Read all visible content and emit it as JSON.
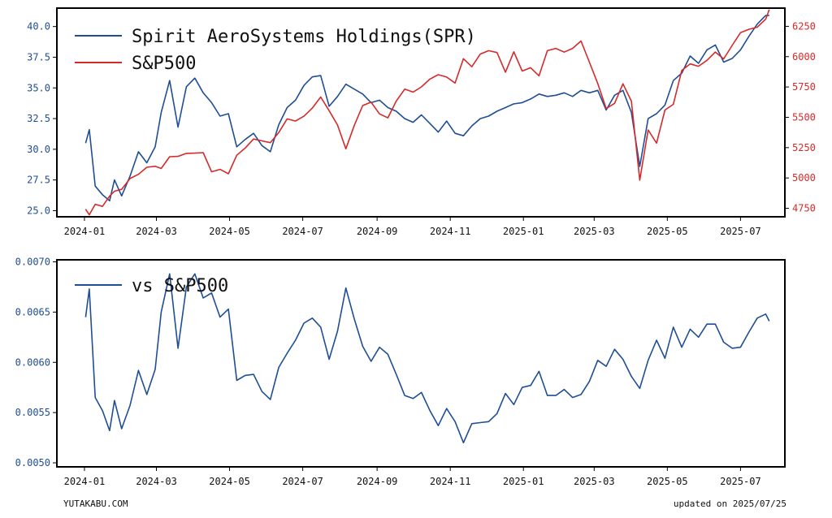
{
  "footer": {
    "site": "YUTAKABU.COM",
    "updated": "updated on 2025/07/25"
  },
  "colors": {
    "spr": "#1f4e96",
    "sp500": "#d62a2a",
    "left_axis": "#1f4e96",
    "right_axis": "#d62a2a"
  },
  "chart_data": [
    {
      "type": "line",
      "x_ticks": [
        "2024-01",
        "2024-03",
        "2024-05",
        "2024-07",
        "2024-09",
        "2024-11",
        "2025-01",
        "2025-03",
        "2025-05",
        "2025-07"
      ],
      "y_ticks_left": [
        "25.0",
        "27.5",
        "30.0",
        "32.5",
        "35.0",
        "37.5",
        "40.0"
      ],
      "y_ticks_right": [
        "4750",
        "5000",
        "5250",
        "5500",
        "5750",
        "6000",
        "6250"
      ],
      "ylim_left": [
        24.5,
        41.5
      ],
      "ylim_right": [
        4680,
        6400
      ],
      "legend": "top-left",
      "grid": false,
      "series": [
        {
          "name": "Spirit AeroSystems Holdings(SPR)",
          "axis": "left",
          "x": [
            "2024-01-02",
            "2024-01-05",
            "2024-01-10",
            "2024-01-16",
            "2024-01-22",
            "2024-01-26",
            "2024-02-01",
            "2024-02-08",
            "2024-02-15",
            "2024-02-22",
            "2024-02-29",
            "2024-03-05",
            "2024-03-12",
            "2024-03-19",
            "2024-03-26",
            "2024-04-02",
            "2024-04-09",
            "2024-04-16",
            "2024-04-23",
            "2024-04-30",
            "2024-05-07",
            "2024-05-14",
            "2024-05-21",
            "2024-05-28",
            "2024-06-04",
            "2024-06-11",
            "2024-06-18",
            "2024-06-25",
            "2024-07-02",
            "2024-07-09",
            "2024-07-16",
            "2024-07-23",
            "2024-07-30",
            "2024-08-06",
            "2024-08-13",
            "2024-08-20",
            "2024-08-27",
            "2024-09-03",
            "2024-09-10",
            "2024-09-17",
            "2024-09-24",
            "2024-10-01",
            "2024-10-08",
            "2024-10-15",
            "2024-10-22",
            "2024-10-29",
            "2024-11-05",
            "2024-11-12",
            "2024-11-19",
            "2024-11-26",
            "2024-12-03",
            "2024-12-10",
            "2024-12-17",
            "2024-12-24",
            "2024-12-31",
            "2025-01-07",
            "2025-01-14",
            "2025-01-21",
            "2025-01-28",
            "2025-02-04",
            "2025-02-11",
            "2025-02-18",
            "2025-02-25",
            "2025-03-04",
            "2025-03-11",
            "2025-03-18",
            "2025-03-25",
            "2025-04-01",
            "2025-04-08",
            "2025-04-15",
            "2025-04-22",
            "2025-04-29",
            "2025-05-06",
            "2025-05-13",
            "2025-05-20",
            "2025-05-27",
            "2025-06-03",
            "2025-06-10",
            "2025-06-17",
            "2025-06-24",
            "2025-07-01",
            "2025-07-08",
            "2025-07-15",
            "2025-07-22",
            "2025-07-25"
          ],
          "values": [
            30.5,
            31.6,
            27.0,
            26.3,
            25.8,
            27.5,
            26.2,
            27.8,
            29.8,
            28.9,
            30.2,
            33.0,
            35.6,
            31.8,
            35.1,
            35.8,
            34.6,
            33.8,
            32.7,
            32.9,
            30.2,
            30.8,
            31.3,
            30.3,
            29.8,
            32.0,
            33.4,
            34.0,
            35.2,
            35.9,
            36.0,
            33.5,
            34.3,
            35.3,
            34.9,
            34.5,
            33.8,
            34.0,
            33.4,
            33.1,
            32.5,
            32.2,
            32.8,
            32.1,
            31.4,
            32.3,
            31.3,
            31.1,
            31.9,
            32.5,
            32.7,
            33.1,
            33.4,
            33.7,
            33.8,
            34.1,
            34.5,
            34.3,
            34.4,
            34.6,
            34.3,
            34.8,
            34.6,
            34.8,
            33.2,
            34.4,
            34.8,
            33.0,
            28.6,
            32.5,
            32.9,
            33.6,
            35.6,
            36.2,
            37.6,
            37.0,
            38.1,
            38.5,
            37.1,
            37.4,
            38.1,
            39.2,
            40.2,
            40.9,
            40.9
          ]
        },
        {
          "name": "S&P500",
          "axis": "right",
          "x": [
            "2024-01-02",
            "2024-01-05",
            "2024-01-10",
            "2024-01-16",
            "2024-01-22",
            "2024-01-26",
            "2024-02-01",
            "2024-02-08",
            "2024-02-15",
            "2024-02-22",
            "2024-02-29",
            "2024-03-05",
            "2024-03-12",
            "2024-03-19",
            "2024-03-26",
            "2024-04-02",
            "2024-04-09",
            "2024-04-16",
            "2024-04-23",
            "2024-04-30",
            "2024-05-07",
            "2024-05-14",
            "2024-05-21",
            "2024-05-28",
            "2024-06-04",
            "2024-06-11",
            "2024-06-18",
            "2024-06-25",
            "2024-07-02",
            "2024-07-09",
            "2024-07-16",
            "2024-07-23",
            "2024-07-30",
            "2024-08-06",
            "2024-08-13",
            "2024-08-20",
            "2024-08-27",
            "2024-09-03",
            "2024-09-10",
            "2024-09-17",
            "2024-09-24",
            "2024-10-01",
            "2024-10-08",
            "2024-10-15",
            "2024-10-22",
            "2024-10-29",
            "2024-11-05",
            "2024-11-12",
            "2024-11-19",
            "2024-11-26",
            "2024-12-03",
            "2024-12-10",
            "2024-12-17",
            "2024-12-24",
            "2024-12-31",
            "2025-01-07",
            "2025-01-14",
            "2025-01-21",
            "2025-01-28",
            "2025-02-04",
            "2025-02-11",
            "2025-02-18",
            "2025-02-25",
            "2025-03-04",
            "2025-03-11",
            "2025-03-18",
            "2025-03-25",
            "2025-04-01",
            "2025-04-08",
            "2025-04-15",
            "2025-04-22",
            "2025-04-29",
            "2025-05-06",
            "2025-05-13",
            "2025-05-20",
            "2025-05-27",
            "2025-06-03",
            "2025-06-10",
            "2025-06-17",
            "2025-06-24",
            "2025-07-01",
            "2025-07-08",
            "2025-07-15",
            "2025-07-22",
            "2025-07-25"
          ],
          "values": [
            4742,
            4697,
            4783,
            4766,
            4850,
            4891,
            4906,
            4995,
            5030,
            5088,
            5096,
            5078,
            5175,
            5178,
            5203,
            5205,
            5209,
            5051,
            5071,
            5035,
            5187,
            5246,
            5321,
            5306,
            5291,
            5375,
            5487,
            5469,
            5509,
            5576,
            5667,
            5555,
            5436,
            5240,
            5434,
            5597,
            5625,
            5528,
            5496,
            5634,
            5732,
            5708,
            5751,
            5815,
            5851,
            5832,
            5782,
            5983,
            5917,
            6021,
            6049,
            6034,
            5872,
            6040,
            5881,
            5909,
            5842,
            6049,
            6068,
            6037,
            6068,
            6129,
            5955,
            5778,
            5572,
            5615,
            5776,
            5633,
            4982,
            5396,
            5287,
            5560,
            5607,
            5886,
            5940,
            5921,
            5970,
            6038,
            5982,
            6092,
            6198,
            6225,
            6243,
            6309,
            6388
          ]
        }
      ]
    },
    {
      "type": "line",
      "x_ticks": [
        "2024-01",
        "2024-03",
        "2024-05",
        "2024-07",
        "2024-09",
        "2024-11",
        "2025-01",
        "2025-03",
        "2025-05",
        "2025-07"
      ],
      "y_ticks_left": [
        "0.0050",
        "0.0055",
        "0.0060",
        "0.0065",
        "0.0070"
      ],
      "ylim_left": [
        0.00496,
        0.00702
      ],
      "legend": "top-left",
      "grid": false,
      "series": [
        {
          "name": "vs S&P500",
          "axis": "left",
          "x": [
            "2024-01-02",
            "2024-01-05",
            "2024-01-10",
            "2024-01-16",
            "2024-01-22",
            "2024-01-26",
            "2024-02-01",
            "2024-02-08",
            "2024-02-15",
            "2024-02-22",
            "2024-02-29",
            "2024-03-05",
            "2024-03-12",
            "2024-03-19",
            "2024-03-26",
            "2024-04-02",
            "2024-04-09",
            "2024-04-16",
            "2024-04-23",
            "2024-04-30",
            "2024-05-07",
            "2024-05-14",
            "2024-05-21",
            "2024-05-28",
            "2024-06-04",
            "2024-06-11",
            "2024-06-18",
            "2024-06-25",
            "2024-07-02",
            "2024-07-09",
            "2024-07-16",
            "2024-07-23",
            "2024-07-30",
            "2024-08-06",
            "2024-08-13",
            "2024-08-20",
            "2024-08-27",
            "2024-09-03",
            "2024-09-10",
            "2024-09-17",
            "2024-09-24",
            "2024-10-01",
            "2024-10-08",
            "2024-10-15",
            "2024-10-22",
            "2024-10-29",
            "2024-11-05",
            "2024-11-12",
            "2024-11-19",
            "2024-11-26",
            "2024-12-03",
            "2024-12-10",
            "2024-12-17",
            "2024-12-24",
            "2024-12-31",
            "2025-01-07",
            "2025-01-14",
            "2025-01-21",
            "2025-01-28",
            "2025-02-04",
            "2025-02-11",
            "2025-02-18",
            "2025-02-25",
            "2025-03-04",
            "2025-03-11",
            "2025-03-18",
            "2025-03-25",
            "2025-04-01",
            "2025-04-08",
            "2025-04-15",
            "2025-04-22",
            "2025-04-29",
            "2025-05-06",
            "2025-05-13",
            "2025-05-20",
            "2025-05-27",
            "2025-06-03",
            "2025-06-10",
            "2025-06-17",
            "2025-06-24",
            "2025-07-01",
            "2025-07-08",
            "2025-07-15",
            "2025-07-22",
            "2025-07-25"
          ],
          "values": [
            0.00645,
            0.00673,
            0.00565,
            0.00552,
            0.00532,
            0.00562,
            0.00534,
            0.00557,
            0.00592,
            0.00568,
            0.00593,
            0.0065,
            0.00688,
            0.00614,
            0.00675,
            0.00688,
            0.00664,
            0.00669,
            0.00645,
            0.00653,
            0.00582,
            0.00587,
            0.00588,
            0.00571,
            0.00563,
            0.00595,
            0.00609,
            0.00622,
            0.00639,
            0.00644,
            0.00635,
            0.00603,
            0.00631,
            0.00674,
            0.00643,
            0.00616,
            0.00601,
            0.00615,
            0.00608,
            0.00588,
            0.00567,
            0.00564,
            0.0057,
            0.00552,
            0.00537,
            0.00554,
            0.00541,
            0.0052,
            0.00539,
            0.0054,
            0.00541,
            0.00549,
            0.00569,
            0.00558,
            0.00575,
            0.00577,
            0.00591,
            0.00567,
            0.00567,
            0.00573,
            0.00565,
            0.00568,
            0.00581,
            0.00602,
            0.00596,
            0.00613,
            0.00603,
            0.00586,
            0.00574,
            0.00602,
            0.00622,
            0.00604,
            0.00635,
            0.00615,
            0.00633,
            0.00625,
            0.00638,
            0.00638,
            0.0062,
            0.00614,
            0.00615,
            0.0063,
            0.00644,
            0.00648,
            0.00641
          ]
        }
      ]
    }
  ]
}
